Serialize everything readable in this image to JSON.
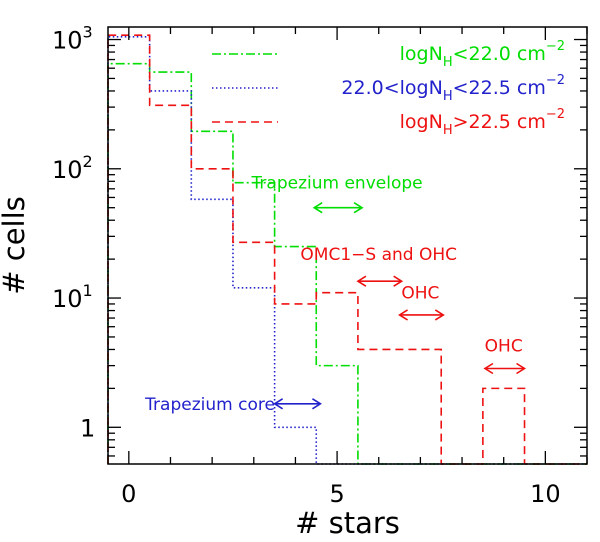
{
  "chart_data": {
    "type": "histogram-step",
    "xlabel": "# stars",
    "ylabel": "# cells",
    "xlim": [
      -0.5,
      11
    ],
    "ylim_log": [
      0.52,
      1250
    ],
    "yscale": "log",
    "x_ticks": [
      {
        "value": 0,
        "label": "0"
      },
      {
        "value": 5,
        "label": "5"
      },
      {
        "value": 10,
        "label": "10"
      }
    ],
    "y_ticks": [
      {
        "value": 1,
        "base": "1",
        "exp": ""
      },
      {
        "value": 10,
        "base": "10",
        "exp": "1"
      },
      {
        "value": 100,
        "base": "10",
        "exp": "2"
      },
      {
        "value": 1000,
        "base": "10",
        "exp": "3"
      }
    ],
    "series": [
      {
        "name": "logNH<22.0 cm-2",
        "legend": {
          "pre": "logN",
          "sub": "H",
          "post": "<22.0 cm",
          "sup": "−2"
        },
        "color": "#00dd00",
        "dash": "9,3,2,3",
        "bins": [
          {
            "x0": -0.5,
            "x1": 0.5,
            "value": 650
          },
          {
            "x0": 0.5,
            "x1": 1.5,
            "value": 560
          },
          {
            "x0": 1.5,
            "x1": 2.5,
            "value": 195
          },
          {
            "x0": 2.5,
            "x1": 3.5,
            "value": 78
          },
          {
            "x0": 3.5,
            "x1": 4.5,
            "value": 25
          },
          {
            "x0": 4.5,
            "x1": 5.5,
            "value": 3
          }
        ]
      },
      {
        "name": "22.0<logNH<22.5 cm-2",
        "legend": {
          "pre": "22.0<logN",
          "sub": "H",
          "post": "<22.5 cm",
          "sup": "−2"
        },
        "color": "#2222cc",
        "dash": "1.5,2.5",
        "bins": [
          {
            "x0": -0.5,
            "x1": 0.5,
            "value": 1050
          },
          {
            "x0": 0.5,
            "x1": 1.5,
            "value": 400
          },
          {
            "x0": 1.5,
            "x1": 2.5,
            "value": 58
          },
          {
            "x0": 2.5,
            "x1": 3.5,
            "value": 12
          },
          {
            "x0": 3.5,
            "x1": 4.5,
            "value": 1
          }
        ]
      },
      {
        "name": "logNH>22.5 cm-2",
        "legend": {
          "pre": "logN",
          "sub": "H",
          "post": ">22.5 cm",
          "sup": "−2"
        },
        "color": "#ee1111",
        "dash": "8,5",
        "bins": [
          {
            "x0": -0.5,
            "x1": 0.5,
            "value": 1080
          },
          {
            "x0": 0.5,
            "x1": 1.5,
            "value": 310
          },
          {
            "x0": 1.5,
            "x1": 2.5,
            "value": 100
          },
          {
            "x0": 2.5,
            "x1": 3.5,
            "value": 27
          },
          {
            "x0": 3.5,
            "x1": 4.5,
            "value": 9
          },
          {
            "x0": 4.5,
            "x1": 5.5,
            "value": 11
          },
          {
            "x0": 5.5,
            "x1": 7.5,
            "value": 4
          },
          {
            "x0": 8.5,
            "x1": 9.5,
            "value": 2
          }
        ]
      }
    ],
    "annotations": [
      {
        "text": "Trapezium envelope",
        "color": "#00dd00",
        "x0": 4.45,
        "x1": 5.6,
        "arrow_y": 50,
        "text_x": 5.0,
        "text_y": 78
      },
      {
        "text": "OMC1−S and OHC",
        "color": "#ee1111",
        "x0": 5.5,
        "x1": 6.55,
        "arrow_y": 13.5,
        "text_x": 6.0,
        "text_y": 22
      },
      {
        "text": "OHC",
        "color": "#ee1111",
        "x0": 6.5,
        "x1": 7.55,
        "arrow_y": 7.4,
        "text_x": 7.0,
        "text_y": 11
      },
      {
        "text": "OHC",
        "color": "#ee1111",
        "x0": 8.55,
        "x1": 9.5,
        "arrow_y": 2.85,
        "text_x": 9.0,
        "text_y": 4.3
      },
      {
        "text": "Trapezium core",
        "color": "#2222cc",
        "x0": 3.5,
        "x1": 4.6,
        "arrow_y": 1.52,
        "text_x": 1.95,
        "text_y": 1.52
      }
    ]
  }
}
